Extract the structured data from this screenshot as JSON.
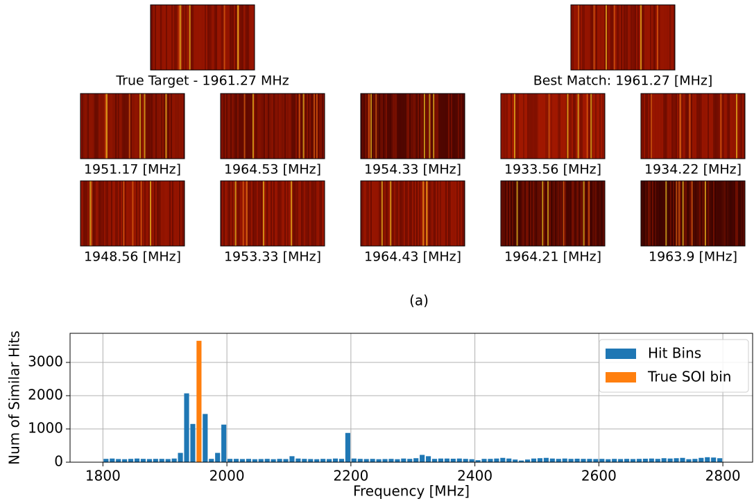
{
  "thumbnails": {
    "target": {
      "label": "True Target - 1961.27 MHz"
    },
    "best_match": {
      "label": "Best Match: 1961.27 [MHz]"
    },
    "matches": [
      "1951.17 [MHz]",
      "1964.53 [MHz]",
      "1954.33 [MHz]",
      "1933.56 [MHz]",
      "1934.22 [MHz]",
      "1948.56 [MHz]",
      "1953.33 [MHz]",
      "1964.43 [MHz]",
      "1964.21 [MHz]",
      "1963.9 [MHz]"
    ],
    "caption": "(a)"
  },
  "chart_data": {
    "type": "histogram",
    "xlabel": "Frequency [MHz]",
    "ylabel": "Num of Similar Hits",
    "xlim": [
      1747,
      2848
    ],
    "ylim": [
      0,
      3875
    ],
    "xticks": [
      1800,
      2000,
      2200,
      2400,
      2600,
      2800
    ],
    "yticks": [
      0,
      1000,
      2000,
      3000
    ],
    "grid": true,
    "legend": "upper right",
    "series": [
      {
        "name": "Hit Bins",
        "color": "#1f77b4",
        "bins": [
          1800,
          1810,
          1820,
          1830,
          1840,
          1850,
          1860,
          1870,
          1880,
          1890,
          1900,
          1910,
          1920,
          1930,
          1940,
          1950,
          1960,
          1970,
          1980,
          1990,
          2000,
          2010,
          2020,
          2030,
          2040,
          2050,
          2060,
          2070,
          2080,
          2090,
          2100,
          2110,
          2120,
          2130,
          2140,
          2150,
          2160,
          2170,
          2180,
          2190,
          2200,
          2210,
          2220,
          2230,
          2240,
          2250,
          2260,
          2270,
          2280,
          2290,
          2300,
          2310,
          2320,
          2330,
          2340,
          2350,
          2360,
          2370,
          2380,
          2390,
          2400,
          2410,
          2420,
          2430,
          2440,
          2450,
          2460,
          2470,
          2480,
          2490,
          2500,
          2510,
          2520,
          2530,
          2540,
          2550,
          2560,
          2570,
          2580,
          2590,
          2600,
          2610,
          2620,
          2630,
          2640,
          2650,
          2660,
          2670,
          2680,
          2690,
          2700,
          2710,
          2720,
          2730,
          2740,
          2750,
          2760,
          2770,
          2780,
          2790,
          2800
        ],
        "values": [
          100,
          110,
          95,
          90,
          100,
          110,
          100,
          95,
          100,
          100,
          95,
          110,
          280,
          2070,
          1150,
          null,
          1450,
          100,
          280,
          1130,
          100,
          100,
          95,
          100,
          90,
          95,
          100,
          90,
          100,
          95,
          180,
          110,
          100,
          95,
          90,
          100,
          95,
          110,
          100,
          880,
          110,
          100,
          95,
          100,
          90,
          95,
          100,
          90,
          110,
          100,
          120,
          220,
          180,
          100,
          110,
          110,
          105,
          110,
          100,
          90,
          60,
          100,
          100,
          110,
          130,
          110,
          80,
          50,
          80,
          110,
          120,
          130,
          110,
          100,
          110,
          100,
          105,
          100,
          100,
          95,
          100,
          90,
          100,
          95,
          100,
          95,
          100,
          105,
          110,
          100,
          120,
          110,
          120,
          130,
          90,
          100,
          130,
          150,
          140,
          120
        ]
      },
      {
        "name": "True SOI bin",
        "color": "#ff7f0e",
        "bins": [
          1950,
          1960
        ],
        "values": [
          3650
        ]
      }
    ]
  }
}
